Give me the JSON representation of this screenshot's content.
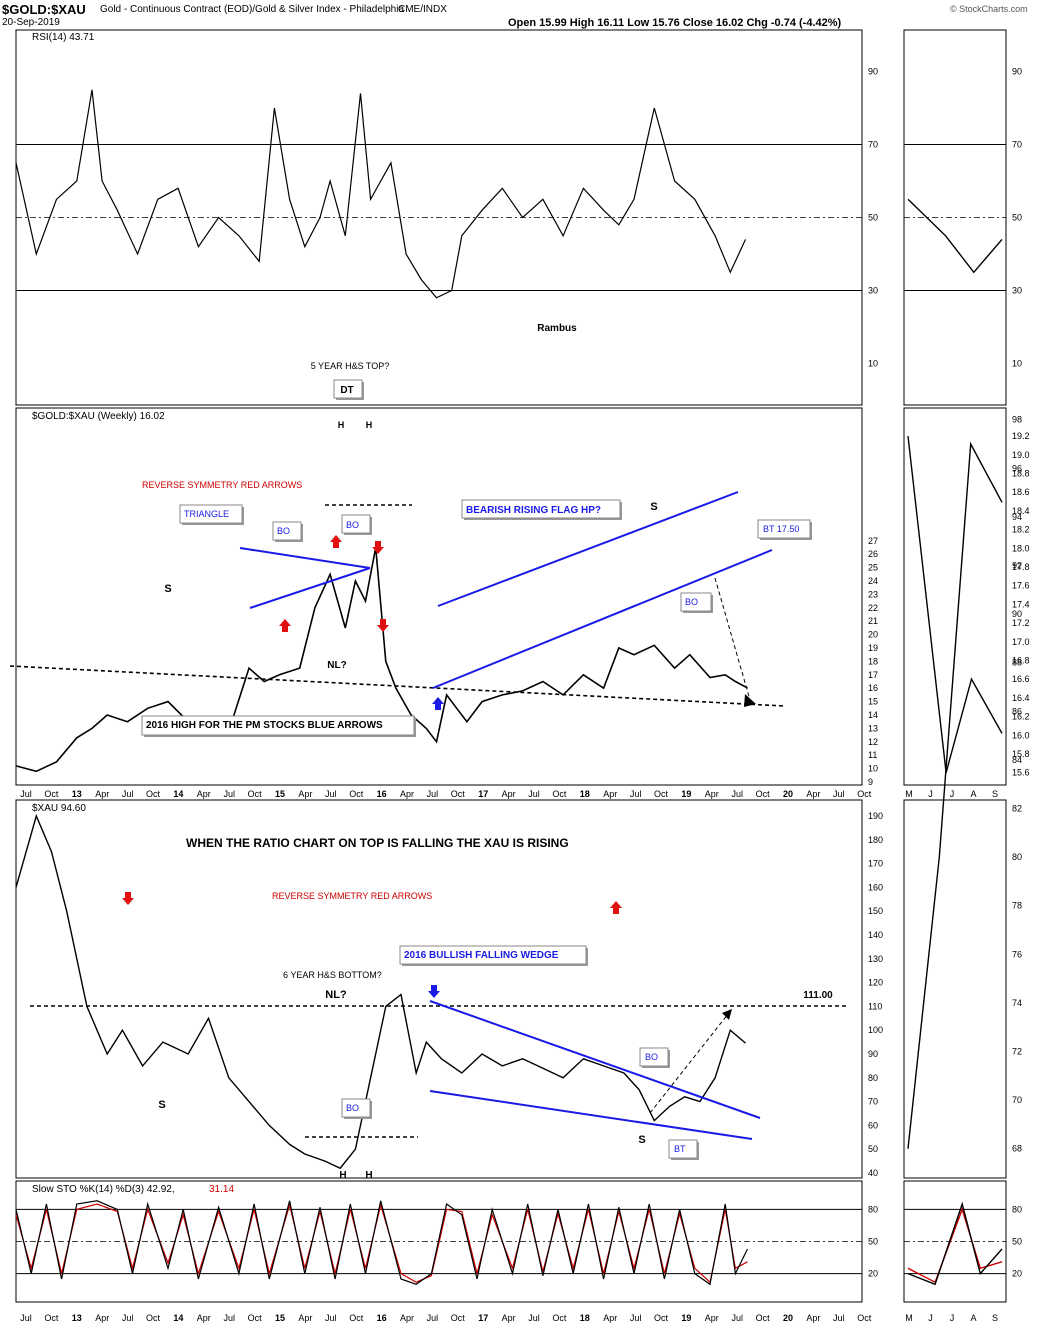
{
  "header": {
    "symbol": "$GOLD:$XAU",
    "description": "Gold - Continuous Contract (EOD)/Gold & Silver Index - Philadelphia",
    "exchange": "CME/INDX",
    "date": "20-Sep-2019",
    "quote": "Open 15.99  High 16.11  Low 15.76  Close 16.02  Chg -0.74 (-4.42%)",
    "watermark": "© StockCharts.com"
  },
  "chart_data": [
    {
      "panel": "rsi",
      "type": "line",
      "legend": "RSI(14) 43.71",
      "y_ticks": [
        10,
        30,
        50,
        70,
        90
      ],
      "ylim": [
        0,
        100
      ],
      "ref_lines": [
        30,
        50,
        70
      ],
      "annotations": [
        "Rambus"
      ],
      "series": [
        {
          "x": [
            2012.5,
            2012.7,
            2012.9,
            2013.1,
            2013.25,
            2013.35,
            2013.5,
            2013.7,
            2013.9,
            2014.1,
            2014.3,
            2014.5,
            2014.7,
            2014.9,
            2015.05,
            2015.2,
            2015.35,
            2015.5,
            2015.6,
            2015.75,
            2015.9,
            2016.0,
            2016.2,
            2016.35,
            2016.5,
            2016.65,
            2016.8,
            2016.9,
            2017.1,
            2017.3,
            2017.5,
            2017.7,
            2017.9,
            2018.1,
            2018.3,
            2018.45,
            2018.6,
            2018.8,
            2019.0,
            2019.2,
            2019.4,
            2019.55,
            2019.7
          ],
          "y": [
            65,
            40,
            55,
            60,
            85,
            60,
            52,
            40,
            55,
            58,
            42,
            50,
            45,
            38,
            80,
            55,
            42,
            50,
            60,
            45,
            84,
            55,
            65,
            40,
            33,
            28,
            30,
            45,
            52,
            58,
            50,
            55,
            45,
            58,
            52,
            48,
            55,
            80,
            60,
            55,
            45,
            35,
            44
          ]
        }
      ]
    },
    {
      "panel": "ratio",
      "type": "line",
      "legend": "$GOLD:$XAU (Weekly) 16.02",
      "y_ticks": [
        9,
        10,
        11,
        12,
        13,
        14,
        15,
        16,
        17,
        18,
        19,
        20,
        21,
        22,
        23,
        24,
        25,
        26,
        27
      ],
      "x_labels": [
        "Jul",
        "Oct",
        "13",
        "Apr",
        "Jul",
        "Oct",
        "14",
        "Apr",
        "Jul",
        "Oct",
        "15",
        "Apr",
        "Jul",
        "Oct",
        "16",
        "Apr",
        "Jul",
        "Oct",
        "17",
        "Apr",
        "Jul",
        "Oct",
        "18",
        "Apr",
        "Jul",
        "Oct",
        "19",
        "Apr",
        "Jul",
        "Oct",
        "20",
        "Apr",
        "Jul",
        "Oct"
      ],
      "annotations": [
        "5 YEAR H&S TOP?",
        "DT",
        "H",
        "H",
        "REVERSE SYMMETRY RED ARROWS",
        "TRIANGLE",
        "BO",
        "BO",
        "S",
        "S",
        "BEARISH RISING FLAG HP?",
        "BT 17.50",
        "BO",
        "NL?",
        "2016 HIGH FOR THE PM STOCKS BLUE ARROWS"
      ],
      "series": [
        {
          "x": [
            2012.5,
            2012.7,
            2012.9,
            2013.1,
            2013.25,
            2013.4,
            2013.6,
            2013.8,
            2014.0,
            2014.2,
            2014.4,
            2014.6,
            2014.8,
            2014.95,
            2015.1,
            2015.3,
            2015.45,
            2015.6,
            2015.75,
            2015.85,
            2015.95,
            2016.05,
            2016.15,
            2016.25,
            2016.4,
            2016.55,
            2016.65,
            2016.75,
            2016.85,
            2016.95,
            2017.1,
            2017.3,
            2017.5,
            2017.7,
            2017.9,
            2018.1,
            2018.3,
            2018.45,
            2018.6,
            2018.8,
            2019.0,
            2019.15,
            2019.35,
            2019.5,
            2019.6,
            2019.72
          ],
          "y": [
            10.2,
            9.8,
            10.5,
            12.3,
            13.0,
            14.0,
            13.5,
            14.5,
            15.0,
            13.5,
            13.0,
            12.8,
            17.5,
            16.5,
            17.0,
            17.5,
            22.0,
            24.5,
            20.5,
            24.0,
            22.5,
            26.5,
            18.0,
            16.0,
            14.0,
            13.0,
            12.0,
            15.5,
            14.5,
            13.5,
            15.0,
            15.5,
            15.8,
            16.5,
            15.5,
            17.0,
            16.0,
            19.0,
            18.5,
            19.2,
            17.5,
            18.5,
            16.8,
            17.0,
            16.5,
            16.02
          ]
        }
      ]
    },
    {
      "panel": "xau",
      "type": "line",
      "legend": "$XAU 94.60",
      "y_ticks": [
        40,
        50,
        60,
        70,
        80,
        90,
        100,
        110,
        120,
        130,
        140,
        150,
        160,
        170,
        180,
        190
      ],
      "annotations": [
        "WHEN THE RATIO CHART ON TOP IS FALLING THE XAU IS RISING",
        "REVERSE SYMMETRY RED ARROWS",
        "6 YEAR H&S BOTTOM?",
        "NL?",
        "111.00",
        "2016 BULLISH FALLING WEDGE",
        "S",
        "S",
        "H",
        "H",
        "BO",
        "BO",
        "BT"
      ],
      "series": [
        {
          "x": [
            2012.5,
            2012.7,
            2012.85,
            2013.0,
            2013.2,
            2013.4,
            2013.55,
            2013.75,
            2013.95,
            2014.2,
            2014.4,
            2014.6,
            2014.8,
            2015.0,
            2015.2,
            2015.35,
            2015.55,
            2015.7,
            2015.85,
            2016.0,
            2016.15,
            2016.3,
            2016.45,
            2016.55,
            2016.7,
            2016.9,
            2017.1,
            2017.3,
            2017.5,
            2017.7,
            2017.9,
            2018.1,
            2018.3,
            2018.5,
            2018.65,
            2018.8,
            2018.95,
            2019.1,
            2019.25,
            2019.4,
            2019.55,
            2019.7
          ],
          "y": [
            160,
            190,
            175,
            150,
            110,
            90,
            100,
            85,
            95,
            90,
            105,
            80,
            70,
            60,
            52,
            48,
            45,
            42,
            50,
            80,
            110,
            115,
            82,
            95,
            88,
            82,
            90,
            85,
            88,
            84,
            80,
            88,
            85,
            82,
            75,
            62,
            68,
            72,
            70,
            80,
            100,
            94.6
          ]
        }
      ]
    },
    {
      "panel": "sto",
      "type": "line",
      "legend_k": "Slow STO %K(14) %D(3) 42.92,",
      "legend_d": "31.14",
      "y_ticks": [
        20,
        50,
        80
      ],
      "ref_lines": [
        20,
        50,
        80
      ],
      "series": [
        {
          "name": "%K",
          "color": "#000000",
          "x": [
            2012.5,
            2012.65,
            2012.8,
            2012.95,
            2013.1,
            2013.3,
            2013.5,
            2013.65,
            2013.8,
            2014.0,
            2014.15,
            2014.3,
            2014.5,
            2014.7,
            2014.85,
            2015.0,
            2015.2,
            2015.35,
            2015.5,
            2015.65,
            2015.8,
            2015.95,
            2016.1,
            2016.3,
            2016.45,
            2016.6,
            2016.75,
            2016.9,
            2017.05,
            2017.2,
            2017.4,
            2017.55,
            2017.7,
            2017.85,
            2018.0,
            2018.15,
            2018.3,
            2018.45,
            2018.6,
            2018.75,
            2018.9,
            2019.05,
            2019.2,
            2019.35,
            2019.5,
            2019.6,
            2019.72
          ],
          "y": [
            80,
            20,
            85,
            15,
            85,
            88,
            80,
            20,
            85,
            25,
            80,
            15,
            82,
            20,
            85,
            15,
            88,
            20,
            82,
            15,
            85,
            20,
            88,
            15,
            10,
            20,
            85,
            75,
            15,
            80,
            20,
            85,
            18,
            80,
            20,
            85,
            15,
            82,
            20,
            85,
            15,
            80,
            20,
            10,
            85,
            20,
            43
          ]
        },
        {
          "name": "%D",
          "color": "#cc0000",
          "x": [
            2012.5,
            2012.65,
            2012.8,
            2012.95,
            2013.1,
            2013.3,
            2013.5,
            2013.65,
            2013.8,
            2014.0,
            2014.15,
            2014.3,
            2014.5,
            2014.7,
            2014.85,
            2015.0,
            2015.2,
            2015.35,
            2015.5,
            2015.65,
            2015.8,
            2015.95,
            2016.1,
            2016.3,
            2016.45,
            2016.6,
            2016.75,
            2016.9,
            2017.05,
            2017.2,
            2017.4,
            2017.55,
            2017.7,
            2017.85,
            2018.0,
            2018.15,
            2018.3,
            2018.45,
            2018.6,
            2018.75,
            2018.9,
            2019.05,
            2019.2,
            2019.35,
            2019.5,
            2019.6,
            2019.72
          ],
          "y": [
            75,
            25,
            80,
            20,
            80,
            85,
            78,
            25,
            80,
            30,
            75,
            20,
            78,
            25,
            80,
            20,
            84,
            25,
            78,
            20,
            80,
            25,
            84,
            20,
            12,
            18,
            80,
            78,
            20,
            75,
            25,
            80,
            22,
            76,
            25,
            80,
            20,
            78,
            25,
            80,
            20,
            76,
            25,
            12,
            80,
            25,
            31
          ]
        }
      ]
    },
    {
      "panel": "inset",
      "x_labels": [
        "M",
        "J",
        "J",
        "A",
        "S"
      ],
      "rsi_ticks": [
        10,
        30,
        50,
        70,
        90
      ],
      "ratio_ticks": [
        15.6,
        15.8,
        16.0,
        16.2,
        16.4,
        16.6,
        16.8,
        17.0,
        17.2,
        17.4,
        17.6,
        17.8,
        18.0,
        18.2,
        18.4,
        18.6,
        18.8,
        19.0,
        19.2
      ],
      "xau_ticks": [
        68,
        70,
        72,
        74,
        76,
        78,
        80,
        82,
        84,
        86,
        88,
        90,
        92,
        94,
        96,
        98
      ],
      "sto_ticks": [
        20,
        50,
        80
      ]
    }
  ]
}
